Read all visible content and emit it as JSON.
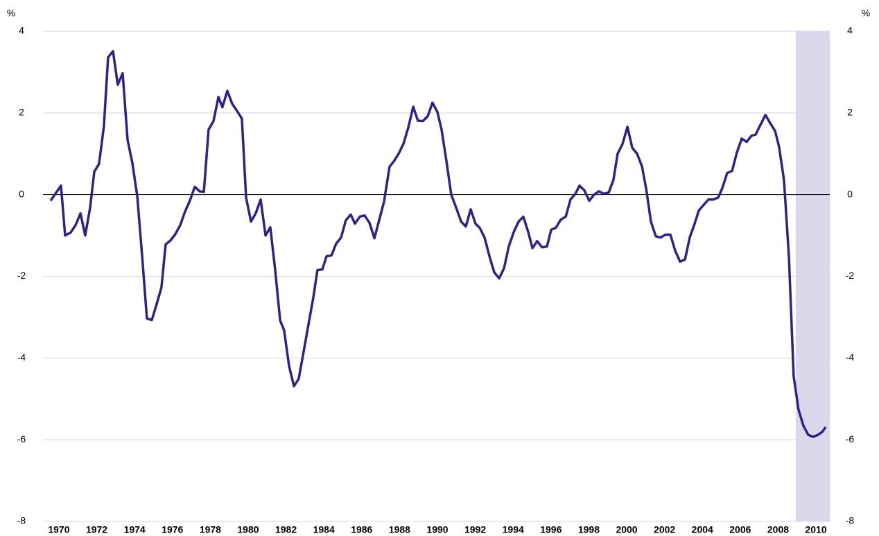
{
  "chart_data": {
    "type": "line",
    "ylabel": "%",
    "y2label": "%",
    "x": [
      1969.56,
      1970.11,
      1970.33,
      1970.62,
      1970.88,
      1971.14,
      1971.39,
      1971.65,
      1971.87,
      1972.12,
      1972.38,
      1972.6,
      1972.86,
      1973.11,
      1973.37,
      1973.63,
      1973.88,
      1974.14,
      1974.4,
      1974.65,
      1974.91,
      1975.16,
      1975.42,
      1975.64,
      1975.9,
      1976.15,
      1976.41,
      1976.67,
      1976.92,
      1977.18,
      1977.44,
      1977.66,
      1977.91,
      1978.17,
      1978.43,
      1978.64,
      1978.9,
      1979.16,
      1979.41,
      1979.67,
      1979.89,
      1980.15,
      1980.4,
      1980.66,
      1980.92,
      1981.17,
      1981.43,
      1981.69,
      1981.9,
      1982.16,
      1982.42,
      1982.67,
      1982.93,
      1983.19,
      1983.44,
      1983.66,
      1983.92,
      1984.14,
      1984.4,
      1984.65,
      1984.91,
      1985.16,
      1985.42,
      1985.64,
      1985.9,
      1986.15,
      1986.41,
      1986.67,
      1986.92,
      1987.18,
      1987.47,
      1987.69,
      1987.95,
      1988.21,
      1988.46,
      1988.72,
      1988.97,
      1989.23,
      1989.49,
      1989.74,
      1990.0,
      1990.22,
      1990.48,
      1990.73,
      1990.99,
      1991.25,
      1991.5,
      1991.76,
      1992.01,
      1992.23,
      1992.49,
      1992.75,
      1993.0,
      1993.26,
      1993.52,
      1993.77,
      1994.03,
      1994.29,
      1994.54,
      1994.8,
      1995.02,
      1995.27,
      1995.53,
      1995.79,
      1996.01,
      1996.26,
      1996.52,
      1996.78,
      1997.03,
      1997.29,
      1997.51,
      1997.77,
      1998.02,
      1998.28,
      1998.53,
      1998.79,
      1999.05,
      1999.3,
      1999.52,
      1999.78,
      2000.04,
      2000.29,
      2000.55,
      2000.81,
      2001.03,
      2001.28,
      2001.54,
      2001.79,
      2002.05,
      2002.31,
      2002.56,
      2002.82,
      2003.08,
      2003.33,
      2003.59,
      2003.81,
      2004.07,
      2004.32,
      2004.58,
      2004.84,
      2005.06,
      2005.31,
      2005.57,
      2005.82,
      2006.08,
      2006.34,
      2006.59,
      2006.81,
      2007.07,
      2007.33,
      2007.58,
      2007.84,
      2008.05,
      2008.31,
      2008.57,
      2008.82,
      2009.08,
      2009.34,
      2009.59,
      2009.85,
      2010.11,
      2010.33,
      2010.51
    ],
    "values": [
      -0.15,
      0.22,
      -1.0,
      -0.93,
      -0.75,
      -0.46,
      -1.0,
      -0.32,
      0.56,
      0.75,
      1.68,
      3.36,
      3.51,
      2.69,
      2.97,
      1.34,
      0.78,
      -0.03,
      -1.51,
      -3.03,
      -3.07,
      -2.69,
      -2.27,
      -1.22,
      -1.12,
      -0.97,
      -0.75,
      -0.41,
      -0.15,
      0.19,
      0.08,
      0.07,
      1.59,
      1.8,
      2.39,
      2.14,
      2.54,
      2.22,
      2.05,
      1.86,
      -0.07,
      -0.66,
      -0.46,
      -0.12,
      -1.0,
      -0.8,
      -1.85,
      -3.08,
      -3.32,
      -4.19,
      -4.69,
      -4.51,
      -3.85,
      -3.17,
      -2.53,
      -1.85,
      -1.83,
      -1.51,
      -1.49,
      -1.2,
      -1.05,
      -0.63,
      -0.49,
      -0.71,
      -0.54,
      -0.51,
      -0.69,
      -1.07,
      -0.63,
      -0.17,
      0.68,
      0.81,
      1.0,
      1.25,
      1.64,
      2.15,
      1.81,
      1.8,
      1.92,
      2.25,
      2.02,
      1.59,
      0.81,
      0.0,
      -0.32,
      -0.66,
      -0.78,
      -0.36,
      -0.71,
      -0.81,
      -1.05,
      -1.51,
      -1.9,
      -2.05,
      -1.8,
      -1.27,
      -0.92,
      -0.66,
      -0.54,
      -0.92,
      -1.31,
      -1.14,
      -1.29,
      -1.27,
      -0.86,
      -0.81,
      -0.61,
      -0.54,
      -0.12,
      0.02,
      0.22,
      0.1,
      -0.15,
      0.0,
      0.08,
      0.02,
      0.05,
      0.36,
      1.0,
      1.24,
      1.66,
      1.15,
      1.0,
      0.69,
      0.14,
      -0.66,
      -1.02,
      -1.05,
      -0.98,
      -0.98,
      -1.37,
      -1.64,
      -1.59,
      -1.05,
      -0.71,
      -0.39,
      -0.25,
      -0.12,
      -0.12,
      -0.07,
      0.17,
      0.53,
      0.58,
      1.03,
      1.37,
      1.29,
      1.44,
      1.47,
      1.71,
      1.95,
      1.75,
      1.56,
      1.17,
      0.36,
      -1.51,
      -4.44,
      -5.27,
      -5.66,
      -5.88,
      -5.93,
      -5.88,
      -5.81,
      -5.69
    ],
    "color": "#2e2383",
    "xlim": [
      1969.16,
      2010.73
    ],
    "xticks": [
      1970,
      1972,
      1974,
      1976,
      1978,
      1980,
      1982,
      1984,
      1986,
      1988,
      1990,
      1992,
      1994,
      1996,
      1998,
      2000,
      2002,
      2004,
      2006,
      2008,
      2010
    ],
    "ylim": [
      -8,
      4
    ],
    "yticks": [
      -8,
      -6,
      -4,
      -2,
      0,
      2,
      4
    ],
    "y2lim": [
      -8,
      4
    ],
    "y2ticks": [
      -8,
      -6,
      -4,
      -2,
      0,
      2,
      4
    ],
    "grid": true,
    "grid_color": "#d6d4ec",
    "zero_line": true,
    "shaded_region": [
      2008.93,
      2010.73
    ],
    "shade_color": "#dcd8ec"
  }
}
